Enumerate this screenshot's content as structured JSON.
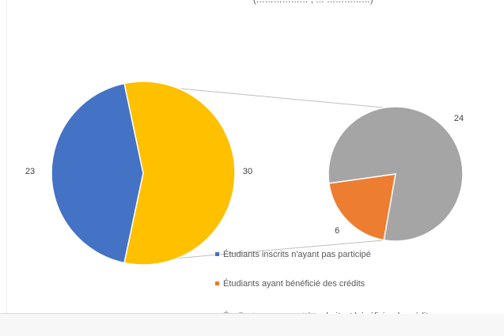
{
  "chart_data": {
    "type": "pie",
    "subtype": "bar-of-pie",
    "main_pie": [
      {
        "name": "Étudiants inscrits n'ayant pas participé",
        "value": 23,
        "color": "#4472C4"
      },
      {
        "name": "",
        "value": 30,
        "color": "#FFC000"
      }
    ],
    "secondary_pie": [
      {
        "name": "Étudiants ayant bénéficié des crédits",
        "value": 6,
        "color": "#ED7D31"
      },
      {
        "name": "Étudiants ne pouvant / souhaitant bénéficier de crédits",
        "value": 24,
        "color": "#A5A5A5"
      }
    ],
    "labels": {
      "main_a": "23",
      "main_b": "30",
      "sec_a": "6",
      "sec_b": "24"
    },
    "legend": [
      {
        "label": "Étudiants inscrits n'ayant pas participé",
        "color": "#4472C4"
      },
      {
        "label": "Étudiants ayant bénéficié des crédits",
        "color": "#ED7D31"
      },
      {
        "label": "Étudiants ne pouvant / souhaitant bénéficier de crédits",
        "color": "#A5A5A5"
      }
    ],
    "legend_placement": "bottom-right",
    "cut_off_title": "(……………… , … ……………)"
  }
}
